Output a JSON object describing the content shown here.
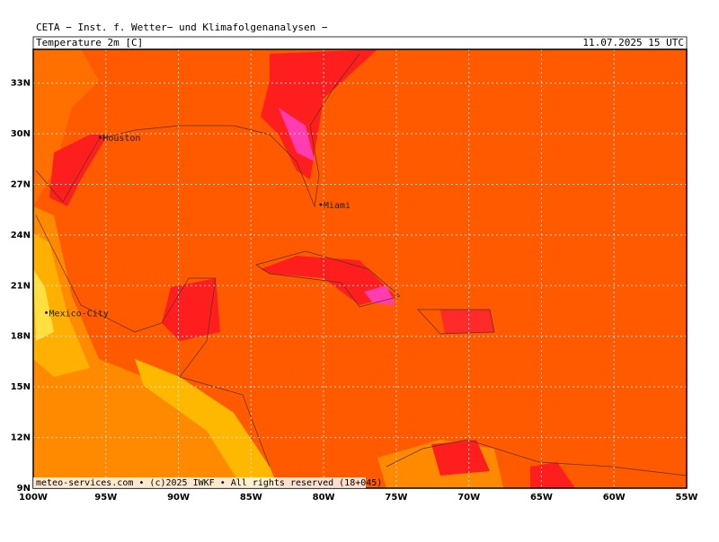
{
  "header": {
    "title": "CETA − Inst. f. Wetter− und Klimafolgenanalysen −",
    "field": "Temperature 2m [C]",
    "valid": "11.07.2025 15 UTC"
  },
  "map": {
    "lon_range": [
      -100,
      -55
    ],
    "lat_range": [
      9,
      35
    ],
    "lon_ticks": [
      {
        "value": -100,
        "label": "100W"
      },
      {
        "value": -95,
        "label": "95W"
      },
      {
        "value": -90,
        "label": "90W"
      },
      {
        "value": -85,
        "label": "85W"
      },
      {
        "value": -80,
        "label": "80W"
      },
      {
        "value": -75,
        "label": "75W"
      },
      {
        "value": -70,
        "label": "70W"
      },
      {
        "value": -65,
        "label": "65W"
      },
      {
        "value": -60,
        "label": "60W"
      },
      {
        "value": -55,
        "label": "55W"
      }
    ],
    "lat_ticks": [
      {
        "value": 9,
        "label": "9N"
      },
      {
        "value": 12,
        "label": "12N"
      },
      {
        "value": 15,
        "label": "15N"
      },
      {
        "value": 18,
        "label": "18N"
      },
      {
        "value": 21,
        "label": "21N"
      },
      {
        "value": 24,
        "label": "24N"
      },
      {
        "value": 27,
        "label": "27N"
      },
      {
        "value": 30,
        "label": "30N"
      },
      {
        "value": 33,
        "label": "33N"
      }
    ],
    "cities": [
      {
        "name": "Houston",
        "lon": -95.4,
        "lat": 29.8
      },
      {
        "name": "Miami",
        "lon": -80.2,
        "lat": 25.8
      },
      {
        "name": "Mexico-City",
        "lon": -99.1,
        "lat": 19.4
      }
    ]
  },
  "footer": {
    "credit": "meteo-services.com • (c)2025 IWKF • All rights reserved (18+045)"
  }
}
